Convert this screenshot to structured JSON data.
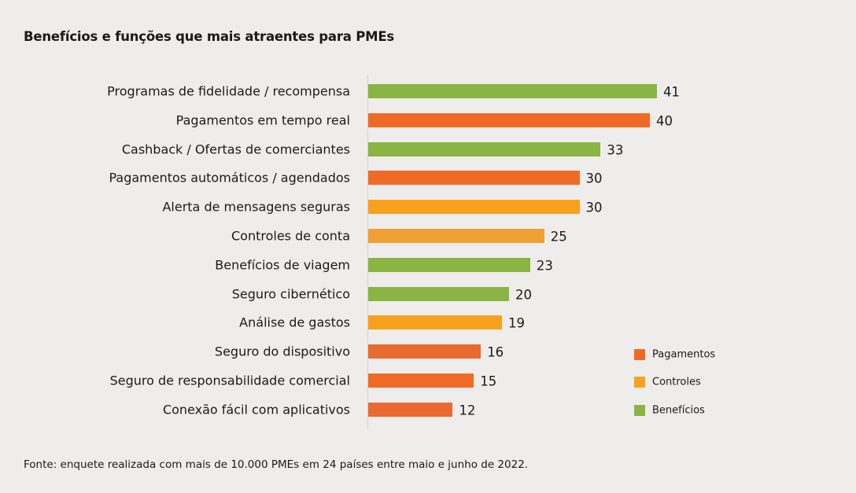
{
  "chart_data": {
    "type": "bar",
    "orientation": "horizontal",
    "title": "Benefícios e funções que mais atraentes para  PMEs",
    "categories": [
      "Programas de fidelidade / recompensa",
      "Pagamentos em tempo real",
      "Cashback / Ofertas de comerciantes",
      "Pagamentos automáticos / agendados",
      "Alerta de mensagens seguras",
      "Controles de conta",
      "Benefícios de viagem",
      "Seguro cibernético",
      "Análise de gastos",
      "Seguro do dispositivo",
      "Seguro de responsabilidade comercial",
      "Conexão fácil com aplicativos"
    ],
    "values": [
      41,
      40,
      33,
      30,
      30,
      25,
      23,
      20,
      19,
      16,
      15,
      12
    ],
    "groups": [
      "Benefícios",
      "Pagamentos",
      "Benefícios",
      "Pagamentos",
      "Controles",
      "Controles",
      "Benefícios",
      "Benefícios",
      "Controles",
      "Pagamentos",
      "Pagamentos",
      "Pagamentos"
    ],
    "bar_colors": [
      "#8ab443",
      "#ef6b25",
      "#8ab443",
      "#ef6b25",
      "#f7a11f",
      "#f0a033",
      "#8ab443",
      "#8ab443",
      "#f7a11f",
      "#e86a2e",
      "#ef6b25",
      "#e86a2e"
    ],
    "legend": [
      {
        "name": "Pagamentos",
        "color": "#ef6b25"
      },
      {
        "name": "Controles",
        "color": "#f7a11f"
      },
      {
        "name": "Benefícios",
        "color": "#8ab443"
      }
    ],
    "legend_position": "bottom-right",
    "grid": false,
    "xlim": [
      0,
      41
    ]
  },
  "source": "Fonte: enquete realizada com mais de 10.000 PMEs em 24 países entre maio e junho de 2022."
}
